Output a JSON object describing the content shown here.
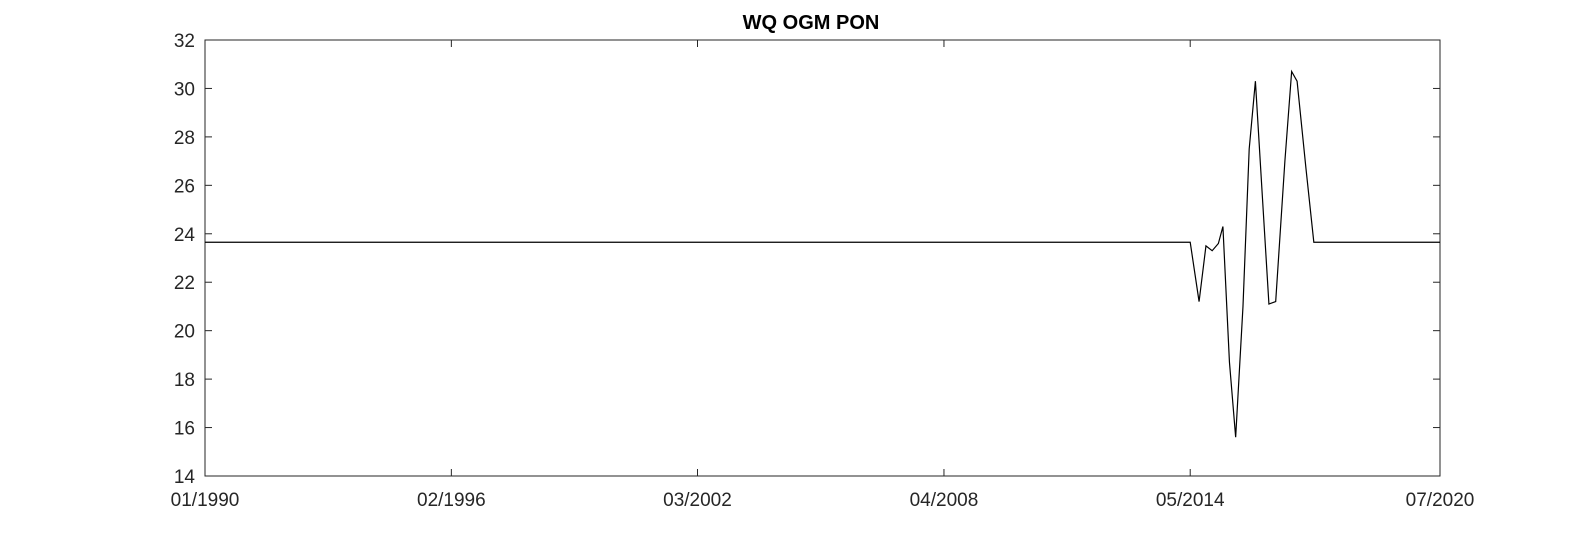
{
  "chart_data": {
    "type": "line",
    "title": "WQ OGM PON",
    "xlabel": "",
    "ylabel": "",
    "x_axis_type": "date",
    "xlim": [
      "1990-01-01",
      "2020-07-01"
    ],
    "ylim": [
      14,
      32
    ],
    "x_ticks": [
      "1990-01-01",
      "1996-02-01",
      "2002-03-01",
      "2008-04-01",
      "2014-05-01",
      "2020-07-01"
    ],
    "x_tick_labels": [
      "01/1990",
      "02/1996",
      "03/2002",
      "04/2008",
      "05/2014",
      "07/2020"
    ],
    "y_ticks": [
      14,
      16,
      18,
      20,
      22,
      24,
      26,
      28,
      30,
      32
    ],
    "grid": false,
    "legend": "none",
    "series": [
      {
        "color": "#000000",
        "points": [
          [
            "1990-01-01",
            23.65
          ],
          [
            "2014-05-01",
            23.65
          ],
          [
            "2014-07-20",
            21.2
          ],
          [
            "2014-09-20",
            23.5
          ],
          [
            "2014-11-15",
            23.3
          ],
          [
            "2015-01-10",
            23.6
          ],
          [
            "2015-02-20",
            24.3
          ],
          [
            "2015-04-20",
            18.7
          ],
          [
            "2015-06-15",
            15.6
          ],
          [
            "2015-08-20",
            21.0
          ],
          [
            "2015-10-15",
            27.5
          ],
          [
            "2015-12-10",
            30.3
          ],
          [
            "2016-02-10",
            25.6
          ],
          [
            "2016-04-10",
            21.1
          ],
          [
            "2016-06-10",
            21.2
          ],
          [
            "2016-09-01",
            27.0
          ],
          [
            "2016-11-01",
            30.7
          ],
          [
            "2016-12-20",
            30.3
          ],
          [
            "2017-03-10",
            26.7
          ],
          [
            "2017-05-20",
            23.65
          ],
          [
            "2020-07-01",
            23.65
          ]
        ]
      }
    ]
  }
}
